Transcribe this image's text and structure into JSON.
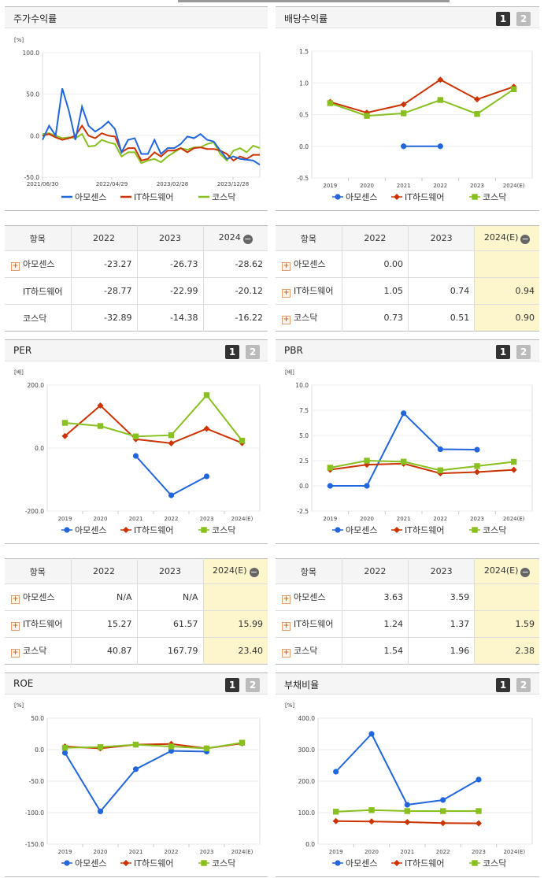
{
  "legend": [
    "아모센스",
    "IT하드웨어",
    "코스닥"
  ],
  "colors": {
    "amosense": "#2266dd",
    "ithw": "#cc3300",
    "kosdaq": "#88c020"
  },
  "buttons": {
    "one": "1",
    "two": "2"
  },
  "collapse_icon": "minus-circle-icon",
  "expand_icon": "plus-square-icon",
  "tables": {
    "stock": {
      "headers": [
        "항목",
        "2022",
        "2023",
        "2024"
      ],
      "rows": [
        {
          "name": "아모센스",
          "cells": [
            "-23.27",
            "-26.73",
            "-28.62"
          ]
        },
        {
          "name": "IT하드웨어",
          "cells": [
            "-28.77",
            "-22.99",
            "-20.12"
          ]
        },
        {
          "name": "코스닥",
          "cells": [
            "-32.89",
            "-14.38",
            "-16.22"
          ]
        }
      ]
    },
    "dividend": {
      "headers": [
        "항목",
        "2022",
        "2023",
        "2024(E)"
      ],
      "rows": [
        {
          "name": "아모센스",
          "cells": [
            "0.00",
            "",
            ""
          ]
        },
        {
          "name": "IT하드웨어",
          "cells": [
            "1.05",
            "0.74",
            "0.94"
          ]
        },
        {
          "name": "코스닥",
          "cells": [
            "0.73",
            "0.51",
            "0.90"
          ]
        }
      ]
    },
    "per": {
      "headers": [
        "항목",
        "2022",
        "2023",
        "2024(E)"
      ],
      "rows": [
        {
          "name": "아모센스",
          "cells": [
            "N/A",
            "N/A",
            ""
          ]
        },
        {
          "name": "IT하드웨어",
          "cells": [
            "15.27",
            "61.57",
            "15.99"
          ]
        },
        {
          "name": "코스닥",
          "cells": [
            "40.87",
            "167.79",
            "23.40"
          ]
        }
      ]
    },
    "pbr": {
      "headers": [
        "항목",
        "2022",
        "2023",
        "2024(E)"
      ],
      "rows": [
        {
          "name": "아모센스",
          "cells": [
            "3.63",
            "3.59",
            ""
          ]
        },
        {
          "name": "IT하드웨어",
          "cells": [
            "1.24",
            "1.37",
            "1.59"
          ]
        },
        {
          "name": "코스닥",
          "cells": [
            "1.54",
            "1.96",
            "2.38"
          ]
        }
      ]
    }
  },
  "chart_data": [
    {
      "id": "stock",
      "title": "주가수익률",
      "type": "line",
      "unit": "[%]",
      "ylim": [
        -50,
        100
      ],
      "yticks": [
        "100.0",
        "50.0",
        "0.0",
        "-50.0"
      ],
      "ytick_values": [
        100,
        50,
        0,
        -50
      ],
      "xticks": [
        "2021/06/30",
        "2022/04/29",
        "2023/02/28",
        "2023/12/28"
      ],
      "series": [
        {
          "name": "아모센스",
          "values": [
            -5,
            12,
            0,
            57,
            30,
            -5,
            35,
            12,
            5,
            10,
            17,
            8,
            -20,
            -5,
            -3,
            -22,
            -22,
            -5,
            -22,
            -15,
            -15,
            -10,
            -1,
            -3,
            2,
            -5,
            -7,
            -18,
            -28,
            -25,
            -28,
            -29,
            -30,
            -35
          ]
        },
        {
          "name": "IT하드웨어",
          "values": [
            0,
            2,
            -2,
            -5,
            -3,
            0,
            12,
            0,
            -3,
            3,
            0,
            -1,
            -20,
            -15,
            -15,
            -30,
            -28,
            -20,
            -25,
            -18,
            -18,
            -15,
            -20,
            -15,
            -14,
            -16,
            -16,
            -18,
            -22,
            -30,
            -25,
            -28,
            -23,
            -23
          ]
        },
        {
          "name": "코스닥",
          "values": [
            2,
            3,
            0,
            -3,
            -2,
            -3,
            2,
            -13,
            -12,
            -5,
            -8,
            -10,
            -25,
            -20,
            -20,
            -33,
            -30,
            -28,
            -32,
            -25,
            -20,
            -15,
            -17,
            -14,
            -14,
            -10,
            -8,
            -22,
            -30,
            -18,
            -15,
            -20,
            -12,
            -15
          ]
        }
      ]
    },
    {
      "id": "dividend",
      "title": "배당수익률",
      "type": "line",
      "unit": "",
      "ylim": [
        -0.5,
        1.5
      ],
      "yticks": [
        "1.5",
        "1.0",
        "0.5",
        "0.0",
        "-0.5"
      ],
      "ytick_values": [
        1.5,
        1.0,
        0.5,
        0.0,
        -0.5
      ],
      "categories": [
        "2019",
        "2020",
        "2021",
        "2022",
        "2023",
        "2024(E)"
      ],
      "series": [
        {
          "name": "아모센스",
          "values": [
            null,
            null,
            0.0,
            0.0,
            null,
            null
          ]
        },
        {
          "name": "IT하드웨어",
          "values": [
            0.7,
            0.53,
            0.66,
            1.05,
            0.74,
            0.94
          ]
        },
        {
          "name": "코스닥",
          "values": [
            0.68,
            0.48,
            0.52,
            0.73,
            0.51,
            0.9
          ]
        }
      ]
    },
    {
      "id": "per",
      "title": "PER",
      "type": "line",
      "unit": "[배]",
      "ylim": [
        -200,
        200
      ],
      "yticks": [
        "200.0",
        "0.0",
        "-200.0"
      ],
      "ytick_values": [
        200,
        0,
        -200
      ],
      "categories": [
        "2019",
        "2020",
        "2021",
        "2022",
        "2023",
        "2024(E)"
      ],
      "series": [
        {
          "name": "아모센스",
          "values": [
            null,
            null,
            -25,
            -150,
            -90,
            null
          ]
        },
        {
          "name": "IT하드웨어",
          "values": [
            38,
            135,
            28,
            15.27,
            61.57,
            15.99
          ]
        },
        {
          "name": "코스닥",
          "values": [
            80,
            70,
            37,
            40.87,
            167.79,
            23.4
          ]
        }
      ]
    },
    {
      "id": "pbr",
      "title": "PBR",
      "type": "line",
      "unit": "[배]",
      "ylim": [
        -2.5,
        10
      ],
      "yticks": [
        "10.0",
        "7.5",
        "5.0",
        "2.5",
        "0.0",
        "-2.5"
      ],
      "ytick_values": [
        10,
        7.5,
        5,
        2.5,
        0,
        -2.5
      ],
      "categories": [
        "2019",
        "2020",
        "2021",
        "2022",
        "2023",
        "2024(E)"
      ],
      "series": [
        {
          "name": "아모센스",
          "values": [
            0.0,
            0.0,
            7.2,
            3.63,
            3.59,
            null
          ]
        },
        {
          "name": "IT하드웨어",
          "values": [
            1.6,
            2.1,
            2.2,
            1.24,
            1.37,
            1.59
          ]
        },
        {
          "name": "코스닥",
          "values": [
            1.8,
            2.5,
            2.4,
            1.54,
            1.96,
            2.38
          ]
        }
      ]
    },
    {
      "id": "roe",
      "title": "ROE",
      "type": "line",
      "unit": "[%]",
      "ylim": [
        -150,
        50
      ],
      "yticks": [
        "50.0",
        "0.0",
        "-50.0",
        "-100.0",
        "-150.0"
      ],
      "ytick_values": [
        50,
        0,
        -50,
        -100,
        -150
      ],
      "categories": [
        "2019",
        "2020",
        "2021",
        "2022",
        "2023",
        "2024(E)"
      ],
      "series": [
        {
          "name": "아모센스",
          "values": [
            -5,
            -98,
            -31,
            -2,
            -3,
            null
          ]
        },
        {
          "name": "IT하드웨어",
          "values": [
            5,
            2,
            8,
            9,
            2,
            10
          ]
        },
        {
          "name": "코스닥",
          "values": [
            3,
            4,
            8,
            5,
            2,
            11
          ]
        }
      ]
    },
    {
      "id": "debt",
      "title": "부채비율",
      "type": "line",
      "unit": "[%]",
      "ylim": [
        0,
        400
      ],
      "yticks": [
        "400.0",
        "300.0",
        "200.0",
        "100.0",
        "0.0"
      ],
      "ytick_values": [
        400,
        300,
        200,
        100,
        0
      ],
      "categories": [
        "2019",
        "2020",
        "2021",
        "2022",
        "2023",
        "2024(E)"
      ],
      "series": [
        {
          "name": "아모센스",
          "values": [
            230,
            350,
            125,
            140,
            205,
            null
          ]
        },
        {
          "name": "IT하드웨어",
          "values": [
            73,
            72,
            70,
            67,
            66,
            null
          ]
        },
        {
          "name": "코스닥",
          "values": [
            103,
            108,
            105,
            105,
            105,
            null
          ]
        }
      ]
    }
  ]
}
